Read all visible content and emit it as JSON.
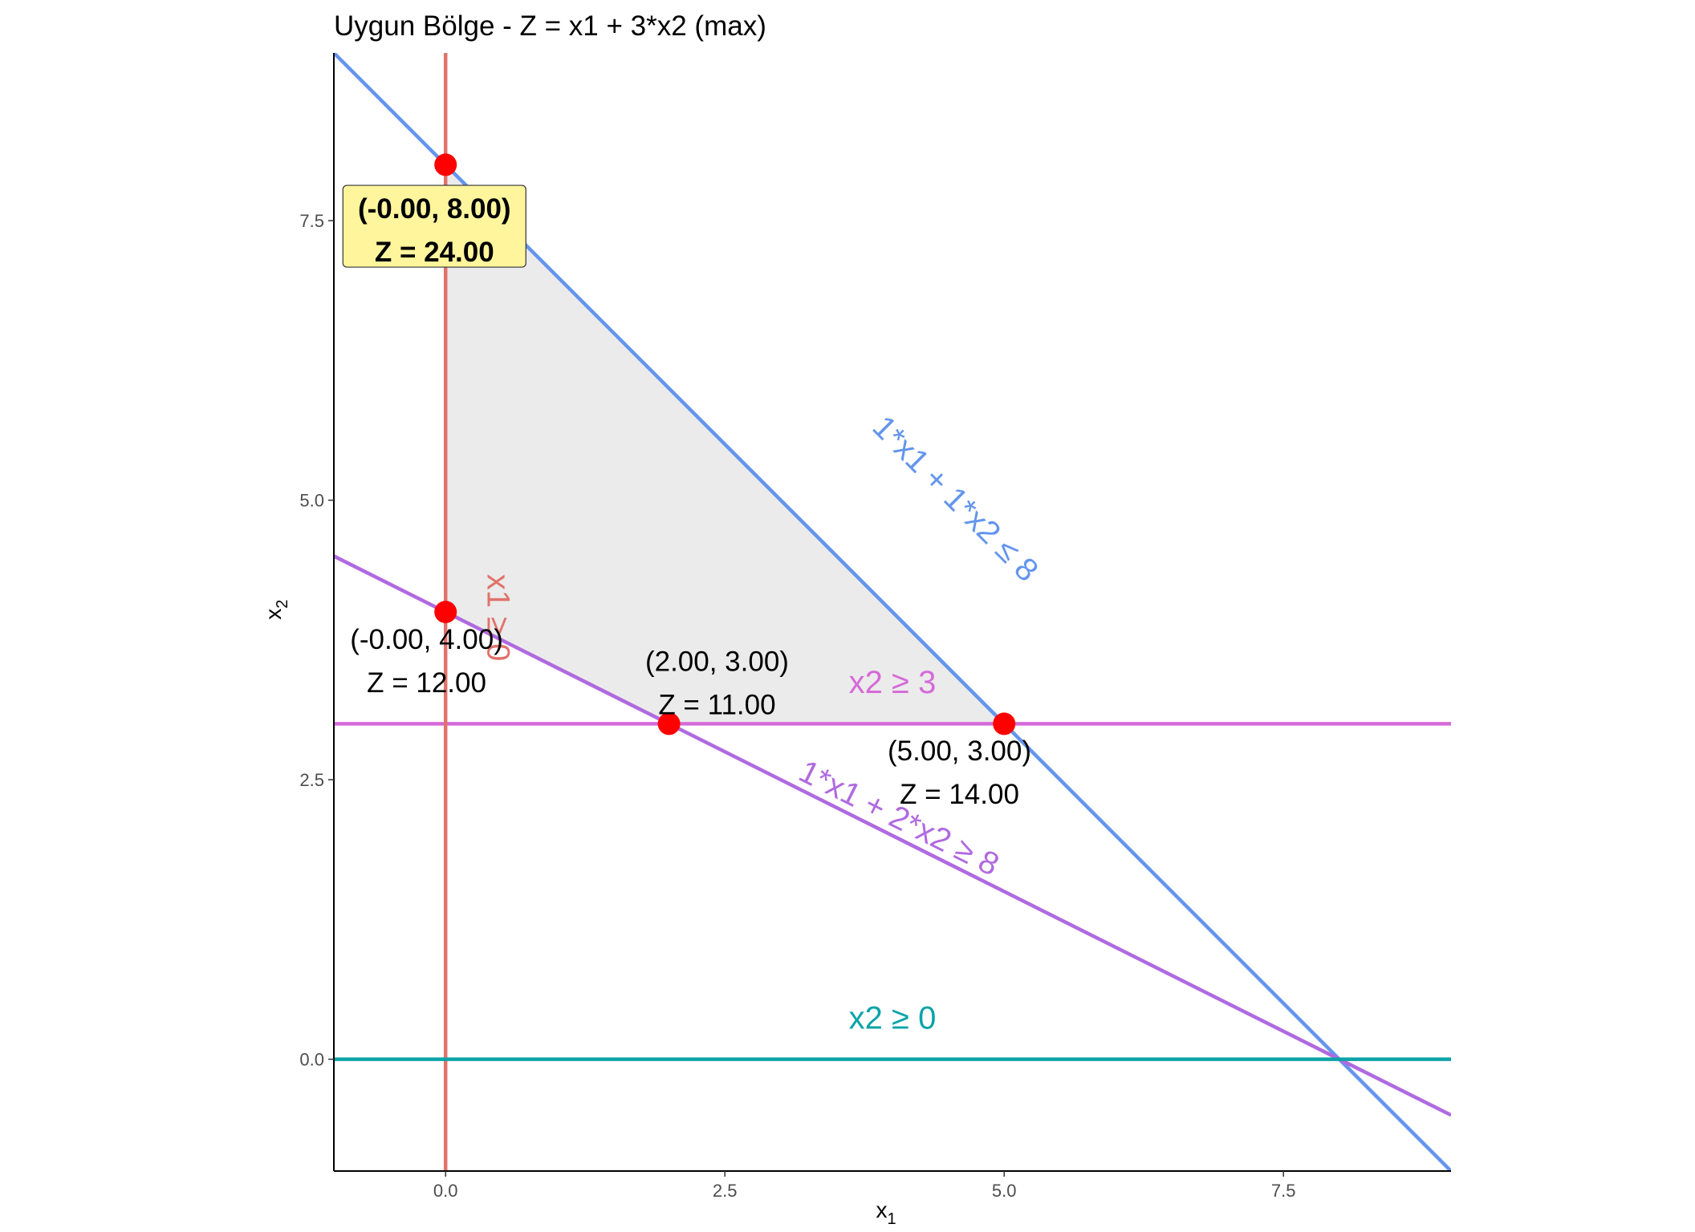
{
  "chart_data": {
    "type": "line",
    "title": "Uygun Bölge - Z = x1 + 3*x2 (max)",
    "xlabel": "x",
    "xlabel_sub": "1",
    "ylabel": "x",
    "ylabel_sub": "2",
    "xlim": [
      -1.0,
      9.0
    ],
    "ylim": [
      -1.0,
      9.0
    ],
    "x_ticks": [
      0.0,
      2.5,
      5.0,
      7.5
    ],
    "x_tick_labels": [
      "0.0",
      "2.5",
      "5.0",
      "7.5"
    ],
    "y_ticks": [
      0.0,
      2.5,
      5.0,
      7.5
    ],
    "y_tick_labels": [
      "0.0",
      "2.5",
      "5.0",
      "7.5"
    ],
    "grid": false,
    "feasible_region": {
      "vertices": [
        [
          0,
          8
        ],
        [
          5,
          3
        ],
        [
          2,
          3
        ],
        [
          0,
          4
        ]
      ],
      "color": "#ebebeb"
    },
    "constraints": [
      {
        "name": "1*x1 + 1*x2 ≤ 8",
        "a": 1,
        "b": 1,
        "c": 8,
        "kind": "line",
        "color": "#6495ed",
        "label_at": [
          4.55,
          5.0
        ]
      },
      {
        "name": "1*x1 + 2*x2 ≥ 8",
        "a": 1,
        "b": 2,
        "c": 8,
        "kind": "line",
        "color": "#b06ae0",
        "label_at": [
          4.05,
          2.14
        ]
      },
      {
        "name": "x2 ≥ 3",
        "kind": "hline",
        "value": 3,
        "color": "#d56ad8",
        "label_at": [
          4.0,
          3.35
        ]
      },
      {
        "name": "x1 ≥ 0",
        "display": "x1 ≥ 0",
        "kind": "vline",
        "value": 0,
        "color": "#e0726b",
        "label_at": [
          0.45,
          3.95
        ]
      },
      {
        "name": "x2 ≥ 0",
        "kind": "hline",
        "value": 0,
        "color": "#0aa3a8",
        "label_at": [
          4.0,
          0.35
        ]
      }
    ],
    "vertices": [
      {
        "x": 0.0,
        "y": 8.0,
        "coord_label": "(-0.00, 8.00)",
        "z_label": "Z = 24.00",
        "optimal": true,
        "label_at": [
          -0.1,
          7.45
        ]
      },
      {
        "x": 0.0,
        "y": 4.0,
        "coord_label": "(-0.00, 4.00)",
        "z_label": "Z = 12.00",
        "optimal": false,
        "label_at": [
          -0.17,
          3.6
        ]
      },
      {
        "x": 2.0,
        "y": 3.0,
        "coord_label": "(2.00, 3.00)",
        "z_label": "Z = 11.00",
        "optimal": false,
        "label_at": [
          2.43,
          3.4
        ]
      },
      {
        "x": 5.0,
        "y": 3.0,
        "coord_label": "(5.00, 3.00)",
        "z_label": "Z = 14.00",
        "optimal": false,
        "label_at": [
          4.6,
          2.6
        ]
      }
    ],
    "point_color": "#ff0000",
    "optimal_label_bg": "#fff59d"
  }
}
